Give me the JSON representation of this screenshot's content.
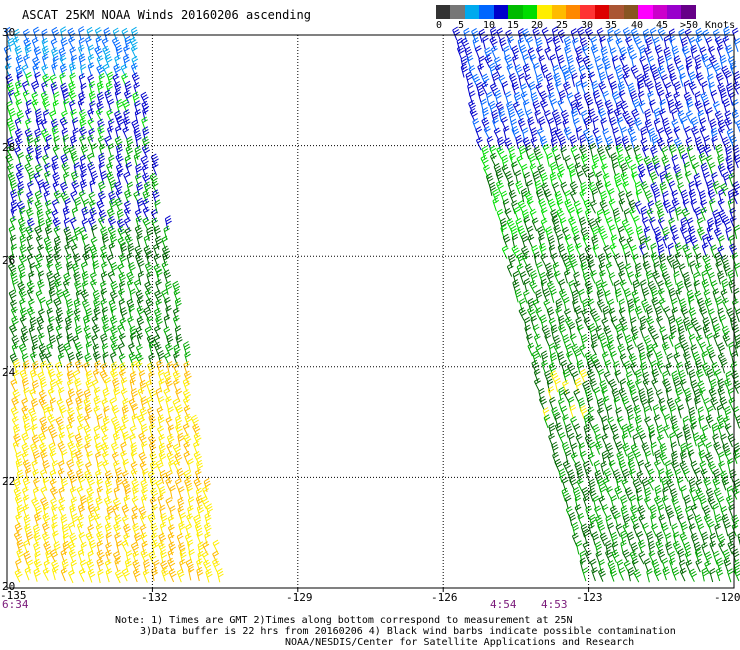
{
  "title": "ASCAT 25KM NOAA Winds 20160206 ascending",
  "scale": {
    "colors": [
      "#333333",
      "#777777",
      "#00aaee",
      "#0066ff",
      "#0000cc",
      "#00bb00",
      "#00dd00",
      "#ffee00",
      "#ffbb00",
      "#ff8800",
      "#ff3333",
      "#dd0000",
      "#aa5533",
      "#885522",
      "#ff00ff",
      "#cc00cc",
      "#9900cc",
      "#660088"
    ],
    "labels": [
      "0",
      "5",
      "10",
      "15",
      "20",
      "25",
      "30",
      "35",
      "40",
      "45",
      ">50"
    ],
    "unit": "Knots"
  },
  "axes": {
    "lat_labels": [
      "30",
      "28",
      "26",
      "24",
      "22",
      "20"
    ],
    "lon_labels": [
      "-135",
      "-132",
      "-129",
      "-126",
      "-123",
      "-120"
    ]
  },
  "times": [
    "6:34",
    "4:54",
    "4:53"
  ],
  "notes": [
    "Note: 1) Times are GMT 2)Times along bottom correspond to measurement at 25N",
    "3)Data buffer is 22 hrs from 20160206 4) Black wind barbs indicate possible contamination",
    "NOAA/NESDIS/Center for Satellite Applications and Research"
  ]
}
